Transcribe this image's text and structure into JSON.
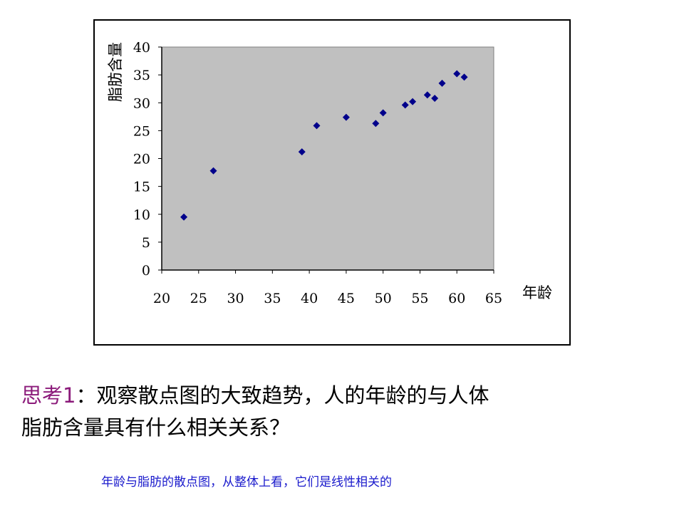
{
  "chart_data": {
    "type": "scatter",
    "title": "",
    "xlabel": "年龄",
    "ylabel": "脂肪含量",
    "xlim": [
      20,
      65
    ],
    "ylim": [
      0,
      40
    ],
    "x_ticks": [
      20,
      25,
      30,
      35,
      40,
      45,
      50,
      55,
      60,
      65
    ],
    "y_ticks": [
      0,
      5,
      10,
      15,
      20,
      25,
      30,
      35,
      40
    ],
    "grid": false,
    "plot_background": "#c0c0c0",
    "marker_color": "#00008b",
    "points": [
      {
        "x": 23,
        "y": 9.5
      },
      {
        "x": 27,
        "y": 17.8
      },
      {
        "x": 39,
        "y": 21.2
      },
      {
        "x": 41,
        "y": 25.9
      },
      {
        "x": 45,
        "y": 27.4
      },
      {
        "x": 49,
        "y": 26.3
      },
      {
        "x": 50,
        "y": 28.2
      },
      {
        "x": 53,
        "y": 29.6
      },
      {
        "x": 54,
        "y": 30.2
      },
      {
        "x": 56,
        "y": 31.4
      },
      {
        "x": 57,
        "y": 30.8
      },
      {
        "x": 58,
        "y": 33.5
      },
      {
        "x": 60,
        "y": 35.2
      },
      {
        "x": 61,
        "y": 34.6
      }
    ]
  },
  "question": {
    "label": "思考1",
    "colon": "：",
    "line1": "观察散点图的大致趋势，人的年龄的与人体",
    "line2": "脂肪含量具有什么相关关系？"
  },
  "caption": "年龄与脂肪的散点图，从整体上看，它们是线性相关的"
}
